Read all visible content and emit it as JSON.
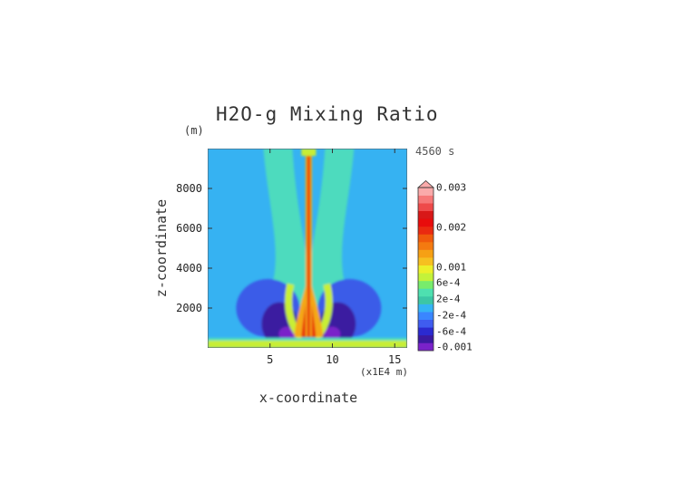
{
  "chart_data": {
    "type": "heatmap",
    "title": "H2O-g Mixing Ratio",
    "time_label": "4560 s",
    "z_unit": "(m)",
    "xlabel": "x-coordinate",
    "x_unit": "(x1E4 m)",
    "ylabel": "z-coordinate",
    "xlim": [
      0,
      16
    ],
    "ylim": [
      0,
      10000
    ],
    "x_ticks": [
      5,
      10,
      15
    ],
    "y_ticks": [
      2000,
      4000,
      6000,
      8000
    ],
    "x_tick_labels": [
      "5",
      "10",
      "15"
    ],
    "y_tick_labels": [
      "2000",
      "4000",
      "6000",
      "8000"
    ],
    "colorbar": {
      "levels": [
        {
          "color": "#7a22c9"
        },
        {
          "color": "#3b1aa0"
        },
        {
          "color": "#2b2ad0"
        },
        {
          "color": "#3f5cf0"
        },
        {
          "color": "#3a86ff"
        },
        {
          "color": "#34b4f5"
        },
        {
          "color": "#3cc6a6"
        },
        {
          "color": "#4ee0b0"
        },
        {
          "color": "#78ec6c"
        },
        {
          "color": "#c4f23a"
        },
        {
          "color": "#ecf02a"
        },
        {
          "color": "#f6c020"
        },
        {
          "color": "#f6a014"
        },
        {
          "color": "#f47a10"
        },
        {
          "color": "#f05a0c"
        },
        {
          "color": "#ea2a10"
        },
        {
          "color": "#e80c0c"
        },
        {
          "color": "#d81818"
        },
        {
          "color": "#ee4a4a"
        },
        {
          "color": "#f67878"
        },
        {
          "color": "#faaaaa"
        }
      ],
      "tick_labels": [
        "0.003",
        "0.002",
        "0.001",
        "6e-4",
        "2e-4",
        "-2e-4",
        "-6e-4",
        "-0.001"
      ],
      "tick_values": [
        0.003,
        0.002,
        0.001,
        0.0006,
        0.0002,
        -0.0002,
        -0.0006,
        -0.001
      ],
      "vmin": -0.001,
      "vmax": 0.003
    },
    "field_description_colors": {
      "background": "#36b2f2",
      "surface_layer": "#c8ee36",
      "plume_core": "#e8330e",
      "plume_edge": "#f4a818",
      "moist_band": "#4fe0b8",
      "dry_lobe": "#3a5ce8",
      "very_dry": "#3b1aa0",
      "driest": "#7a22c9"
    }
  }
}
